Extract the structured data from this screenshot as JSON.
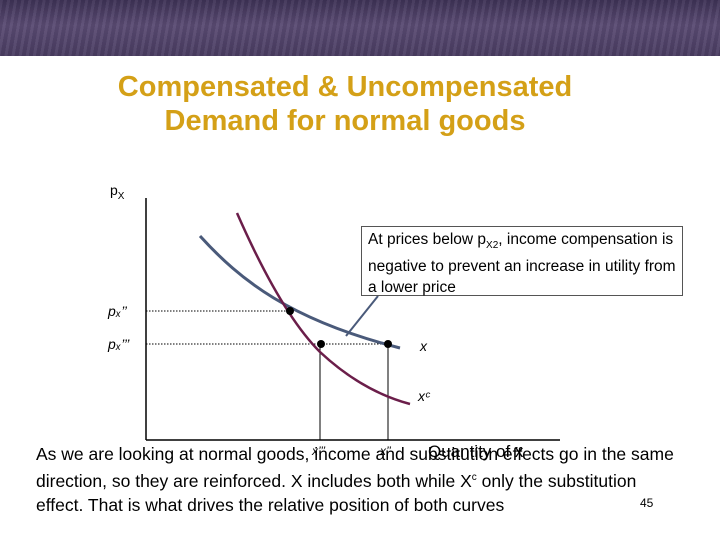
{
  "title": {
    "line1": "Compensated & Uncompensated",
    "line2": "Demand for normal goods"
  },
  "y_axis_label": "p",
  "y_axis_sub": "X",
  "price_labels": {
    "px2": "pₓ’’",
    "px3": "pₓ’’’"
  },
  "curve_labels": {
    "x": "x",
    "xc": "xᶜ"
  },
  "quantity_labels": {
    "x3": "x’’’",
    "x2": "x’’"
  },
  "x_axis_label": "Quantity of x",
  "callout": {
    "part1": "At prices below p",
    "sub": "X2",
    "part2": ", income compensation is negative to prevent an increase in utility from a lower price"
  },
  "bottom": {
    "part1": "As we are looking at normal goods, income and substitution effects go in the same direction, so they are reinforced. X includes both while X",
    "sup": "c",
    "part2": " only the substitution effect. That is what drives the relative position of both curves"
  },
  "page_number": "45",
  "colors": {
    "title": "#d4a017",
    "uncompensated_curve": "#4a5a7a",
    "compensated_curve": "#6b1e4a",
    "header_band": "#4a3d62"
  }
}
